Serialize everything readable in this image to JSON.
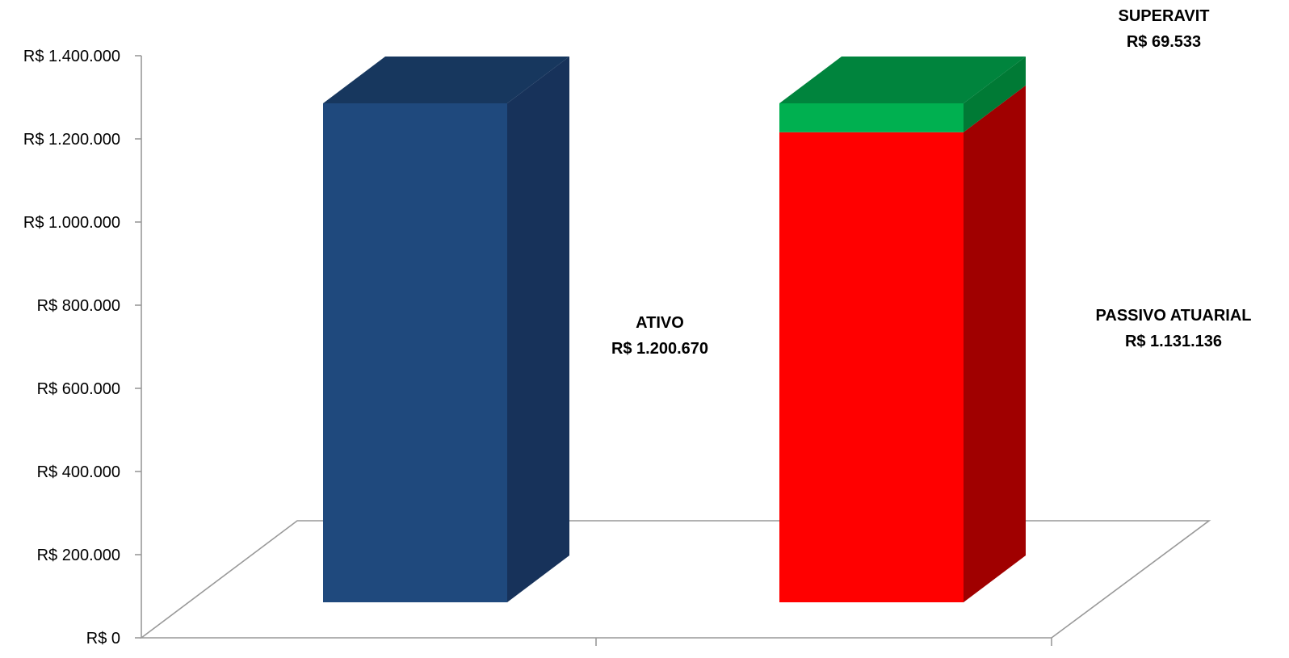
{
  "chart_data": {
    "type": "bar",
    "stacked": true,
    "three_d": true,
    "title": "",
    "xlabel": "",
    "ylabel": "",
    "ylim": [
      0,
      1400000
    ],
    "y_ticks": [
      "R$ 0",
      "R$ 200.000",
      "R$ 400.000",
      "R$ 600.000",
      "R$ 800.000",
      "R$ 1.000.000",
      "R$ 1.200.000",
      "R$ 1.400.000"
    ],
    "grid": false,
    "legend": "none",
    "bars": [
      {
        "segments": [
          {
            "value": 1200670,
            "color": "#1F497D",
            "side": "#17325A",
            "top": "#17375E"
          }
        ],
        "label_lines": [
          "ATIVO",
          "R$ 1.200.670"
        ]
      },
      {
        "segments": [
          {
            "value": 1131136,
            "color": "#FF0000",
            "side": "#A00000",
            "top": "#D00000",
            "label_lines": [
              "PASSIVO ATUARIAL",
              "R$ 1.131.136"
            ]
          },
          {
            "value": 69533,
            "color": "#00B050",
            "side": "#007A35",
            "top": "#00843D",
            "label_lines": [
              "SUPERAVIT",
              "R$ 69.533"
            ]
          }
        ]
      }
    ]
  }
}
